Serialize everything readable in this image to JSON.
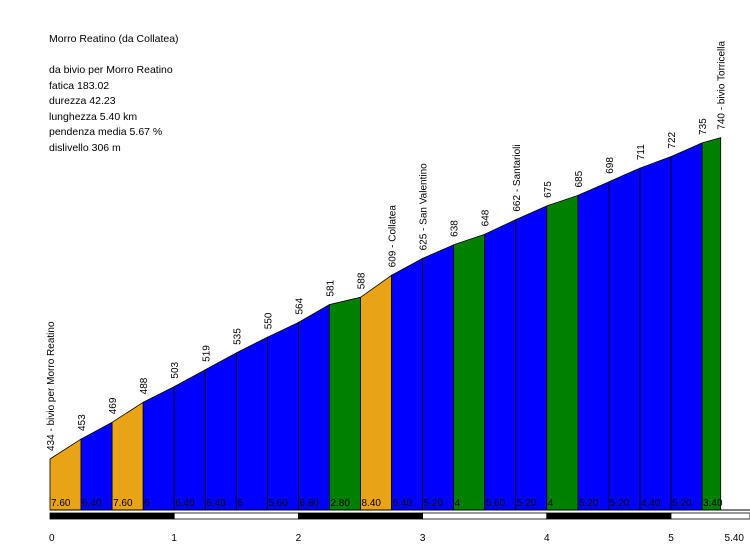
{
  "info": {
    "title": "Morro Reatino (da Collatea)",
    "blank": "",
    "from": "da bivio per Morro Reatino",
    "fatica": "fatica 183.02",
    "durezza": "durezza 42.23",
    "lunghezza": "lunghezza 5.40 km",
    "pendenza": "pendenza media 5.67 %",
    "dislivello": "dislivello 306 m"
  },
  "colors": {
    "low": "#e8a317",
    "mid": "#0000ff",
    "high": "#008000",
    "outline": "#000000"
  },
  "chart_data": {
    "type": "area",
    "xlabel": "",
    "ylabel": "",
    "x_ticks": [
      "0",
      "1",
      "2",
      "3",
      "4",
      "5",
      "5.40"
    ],
    "xlim": [
      0,
      5.4
    ],
    "segments": [
      {
        "x0": 0.0,
        "x1": 0.25,
        "elev_start": 434,
        "elev_end": 453,
        "slope": "7.60",
        "color": "low"
      },
      {
        "x0": 0.25,
        "x1": 0.5,
        "elev_start": 453,
        "elev_end": 469,
        "slope": "6.40",
        "color": "mid"
      },
      {
        "x0": 0.5,
        "x1": 0.75,
        "elev_start": 469,
        "elev_end": 488,
        "slope": "7.60",
        "color": "low"
      },
      {
        "x0": 0.75,
        "x1": 1.0,
        "elev_start": 488,
        "elev_end": 503,
        "slope": "6",
        "color": "mid"
      },
      {
        "x0": 1.0,
        "x1": 1.25,
        "elev_start": 503,
        "elev_end": 519,
        "slope": "6.40",
        "color": "mid"
      },
      {
        "x0": 1.25,
        "x1": 1.5,
        "elev_start": 519,
        "elev_end": 535,
        "slope": "6.40",
        "color": "mid"
      },
      {
        "x0": 1.5,
        "x1": 1.75,
        "elev_start": 535,
        "elev_end": 550,
        "slope": "6",
        "color": "mid"
      },
      {
        "x0": 1.75,
        "x1": 2.0,
        "elev_start": 550,
        "elev_end": 564,
        "slope": "5.60",
        "color": "mid"
      },
      {
        "x0": 2.0,
        "x1": 2.25,
        "elev_start": 564,
        "elev_end": 581,
        "slope": "6.80",
        "color": "mid"
      },
      {
        "x0": 2.25,
        "x1": 2.5,
        "elev_start": 581,
        "elev_end": 588,
        "slope": "2.80",
        "color": "high"
      },
      {
        "x0": 2.5,
        "x1": 2.75,
        "elev_start": 588,
        "elev_end": 609,
        "slope": "8.40",
        "color": "low"
      },
      {
        "x0": 2.75,
        "x1": 3.0,
        "elev_start": 609,
        "elev_end": 625,
        "slope": "6.40",
        "color": "mid"
      },
      {
        "x0": 3.0,
        "x1": 3.25,
        "elev_start": 625,
        "elev_end": 638,
        "slope": "5.20",
        "color": "mid"
      },
      {
        "x0": 3.25,
        "x1": 3.5,
        "elev_start": 638,
        "elev_end": 648,
        "slope": "4",
        "color": "high"
      },
      {
        "x0": 3.5,
        "x1": 3.75,
        "elev_start": 648,
        "elev_end": 662,
        "slope": "5.60",
        "color": "mid"
      },
      {
        "x0": 3.75,
        "x1": 4.0,
        "elev_start": 662,
        "elev_end": 675,
        "slope": "5.20",
        "color": "mid"
      },
      {
        "x0": 4.0,
        "x1": 4.25,
        "elev_start": 675,
        "elev_end": 685,
        "slope": "4",
        "color": "high"
      },
      {
        "x0": 4.25,
        "x1": 4.5,
        "elev_start": 685,
        "elev_end": 698,
        "slope": "5.20",
        "color": "mid"
      },
      {
        "x0": 4.5,
        "x1": 4.75,
        "elev_start": 698,
        "elev_end": 711,
        "slope": "5.20",
        "color": "mid"
      },
      {
        "x0": 4.75,
        "x1": 5.0,
        "elev_start": 711,
        "elev_end": 722,
        "slope": "4.40",
        "color": "mid"
      },
      {
        "x0": 5.0,
        "x1": 5.25,
        "elev_start": 722,
        "elev_end": 735,
        "slope": "5.20",
        "color": "mid"
      },
      {
        "x0": 5.25,
        "x1": 5.4,
        "elev_start": 735,
        "elev_end": 740,
        "slope": "3.40",
        "color": "high"
      }
    ],
    "elevation_labels": [
      {
        "x": 0.0,
        "text": "434 - bivio per Morro Reatino"
      },
      {
        "x": 0.25,
        "text": "453"
      },
      {
        "x": 0.5,
        "text": "469"
      },
      {
        "x": 0.75,
        "text": "488"
      },
      {
        "x": 1.0,
        "text": "503"
      },
      {
        "x": 1.25,
        "text": "519"
      },
      {
        "x": 1.5,
        "text": "535"
      },
      {
        "x": 1.75,
        "text": "550"
      },
      {
        "x": 2.0,
        "text": "564"
      },
      {
        "x": 2.25,
        "text": "581"
      },
      {
        "x": 2.5,
        "text": "588"
      },
      {
        "x": 2.75,
        "text": "609 - Collatea"
      },
      {
        "x": 3.0,
        "text": "625 - San Valentino"
      },
      {
        "x": 3.25,
        "text": "638"
      },
      {
        "x": 3.5,
        "text": "648"
      },
      {
        "x": 3.75,
        "text": "662 - Santarioli"
      },
      {
        "x": 4.0,
        "text": "675"
      },
      {
        "x": 4.25,
        "text": "685"
      },
      {
        "x": 4.5,
        "text": "698"
      },
      {
        "x": 4.75,
        "text": "711"
      },
      {
        "x": 5.0,
        "text": "722"
      },
      {
        "x": 5.25,
        "text": "735"
      },
      {
        "x": 5.4,
        "text": "740 - bivio Torricella"
      }
    ]
  }
}
